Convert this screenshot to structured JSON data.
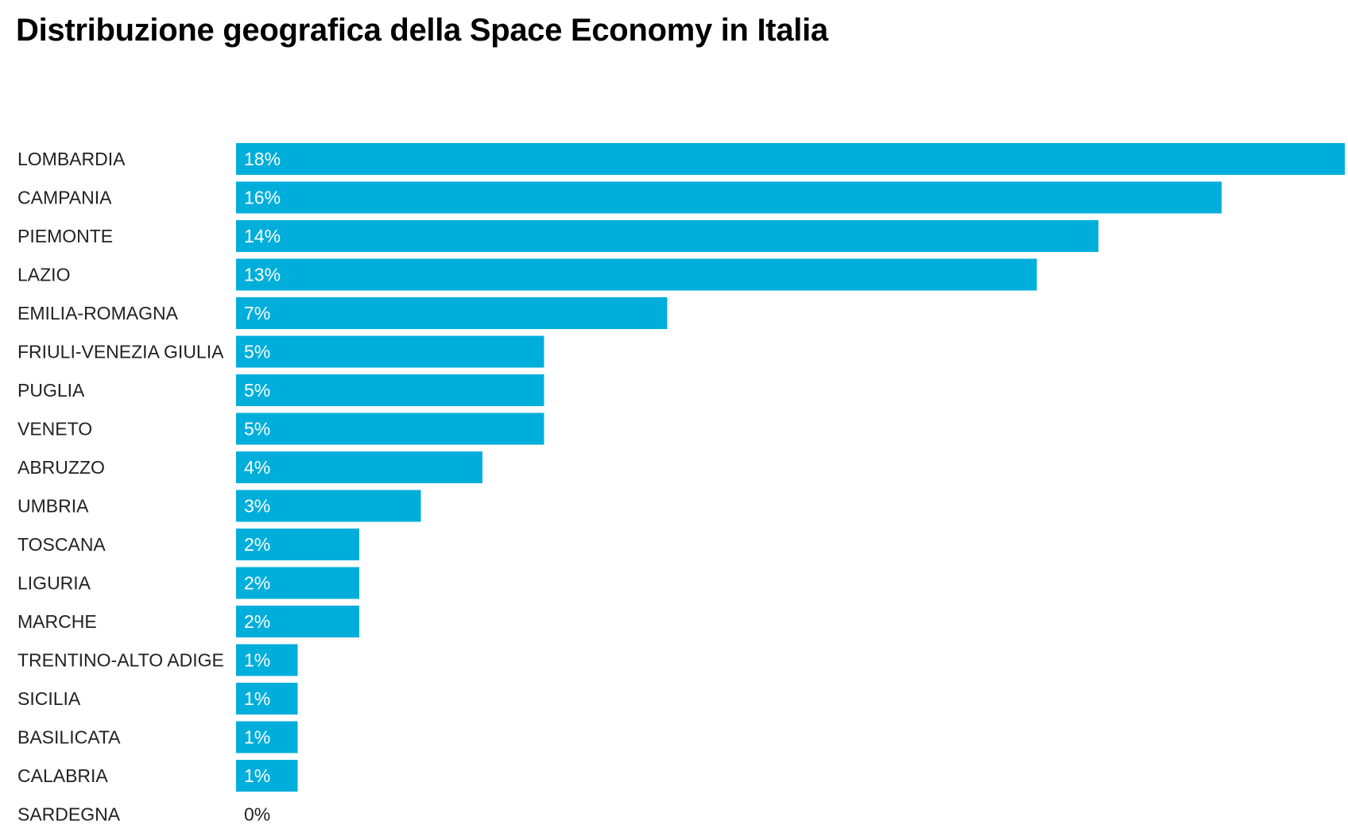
{
  "chart_data": {
    "type": "bar",
    "orientation": "horizontal",
    "title": "Distribuzione geografica della Space Economy in Italia",
    "xlabel": "",
    "ylabel": "",
    "grid": false,
    "xlim": [
      0,
      18
    ],
    "unit": "%",
    "bar_color": "#00aedb",
    "label_inside_color": "#ffffff",
    "label_outside_color": "#222222",
    "categories": [
      "LOMBARDIA",
      "CAMPANIA",
      "PIEMONTE",
      "LAZIO",
      "EMILIA-ROMAGNA",
      "FRIULI-VENEZIA GIULIA",
      "PUGLIA",
      "VENETO",
      "ABRUZZO",
      "UMBRIA",
      "TOSCANA",
      "LIGURIA",
      "MARCHE",
      "TRENTINO-ALTO ADIGE",
      "SICILIA",
      "BASILICATA",
      "CALABRIA",
      "SARDEGNA"
    ],
    "values": [
      18,
      16,
      14,
      13,
      7,
      5,
      5,
      5,
      4,
      3,
      2,
      2,
      2,
      1,
      1,
      1,
      1,
      0
    ],
    "value_labels": [
      "18%",
      "16%",
      "14%",
      "13%",
      "7%",
      "5%",
      "5%",
      "5%",
      "4%",
      "3%",
      "2%",
      "2%",
      "2%",
      "1%",
      "1%",
      "1%",
      "1%",
      "0%"
    ]
  }
}
